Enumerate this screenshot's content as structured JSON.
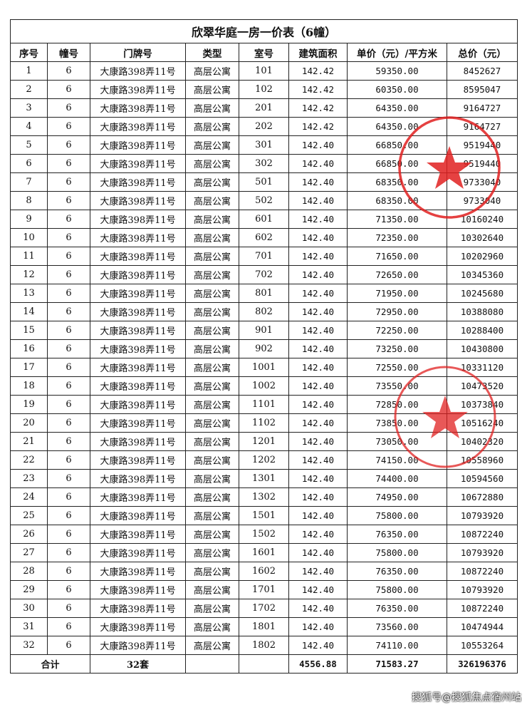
{
  "title": "欣翠华庭一房一价表（6幢）",
  "headers": [
    "序号",
    "幢号",
    "门牌号",
    "类型",
    "室号",
    "建筑面积",
    "单价（元）/平方米",
    "总价（元）"
  ],
  "rows": [
    [
      "1",
      "6",
      "大康路398弄11号",
      "高层公寓",
      "101",
      "142.42",
      "59350.00",
      "8452627"
    ],
    [
      "2",
      "6",
      "大康路398弄11号",
      "高层公寓",
      "102",
      "142.42",
      "60350.00",
      "8595047"
    ],
    [
      "3",
      "6",
      "大康路398弄11号",
      "高层公寓",
      "201",
      "142.42",
      "64350.00",
      "9164727"
    ],
    [
      "4",
      "6",
      "大康路398弄11号",
      "高层公寓",
      "202",
      "142.42",
      "64350.00",
      "9164727"
    ],
    [
      "5",
      "6",
      "大康路398弄11号",
      "高层公寓",
      "301",
      "142.40",
      "66850.00",
      "9519440"
    ],
    [
      "6",
      "6",
      "大康路398弄11号",
      "高层公寓",
      "302",
      "142.40",
      "66850.00",
      "9519440"
    ],
    [
      "7",
      "6",
      "大康路398弄11号",
      "高层公寓",
      "501",
      "142.40",
      "68350.00",
      "9733040"
    ],
    [
      "8",
      "6",
      "大康路398弄11号",
      "高层公寓",
      "502",
      "142.40",
      "68350.00",
      "9733040"
    ],
    [
      "9",
      "6",
      "大康路398弄11号",
      "高层公寓",
      "601",
      "142.40",
      "71350.00",
      "10160240"
    ],
    [
      "10",
      "6",
      "大康路398弄11号",
      "高层公寓",
      "602",
      "142.40",
      "72350.00",
      "10302640"
    ],
    [
      "11",
      "6",
      "大康路398弄11号",
      "高层公寓",
      "701",
      "142.40",
      "71650.00",
      "10202960"
    ],
    [
      "12",
      "6",
      "大康路398弄11号",
      "高层公寓",
      "702",
      "142.40",
      "72650.00",
      "10345360"
    ],
    [
      "13",
      "6",
      "大康路398弄11号",
      "高层公寓",
      "801",
      "142.40",
      "71950.00",
      "10245680"
    ],
    [
      "14",
      "6",
      "大康路398弄11号",
      "高层公寓",
      "802",
      "142.40",
      "72950.00",
      "10388080"
    ],
    [
      "15",
      "6",
      "大康路398弄11号",
      "高层公寓",
      "901",
      "142.40",
      "72250.00",
      "10288400"
    ],
    [
      "16",
      "6",
      "大康路398弄11号",
      "高层公寓",
      "902",
      "142.40",
      "73250.00",
      "10430800"
    ],
    [
      "17",
      "6",
      "大康路398弄11号",
      "高层公寓",
      "1001",
      "142.40",
      "72550.00",
      "10331120"
    ],
    [
      "18",
      "6",
      "大康路398弄11号",
      "高层公寓",
      "1002",
      "142.40",
      "73550.00",
      "10473520"
    ],
    [
      "19",
      "6",
      "大康路398弄11号",
      "高层公寓",
      "1101",
      "142.40",
      "72850.00",
      "10373840"
    ],
    [
      "20",
      "6",
      "大康路398弄11号",
      "高层公寓",
      "1102",
      "142.40",
      "73850.00",
      "10516240"
    ],
    [
      "21",
      "6",
      "大康路398弄11号",
      "高层公寓",
      "1201",
      "142.40",
      "73050.00",
      "10402320"
    ],
    [
      "22",
      "6",
      "大康路398弄11号",
      "高层公寓",
      "1202",
      "142.40",
      "74150.00",
      "10558960"
    ],
    [
      "23",
      "6",
      "大康路398弄11号",
      "高层公寓",
      "1301",
      "142.40",
      "74400.00",
      "10594560"
    ],
    [
      "24",
      "6",
      "大康路398弄11号",
      "高层公寓",
      "1302",
      "142.40",
      "74950.00",
      "10672880"
    ],
    [
      "25",
      "6",
      "大康路398弄11号",
      "高层公寓",
      "1501",
      "142.40",
      "75800.00",
      "10793920"
    ],
    [
      "26",
      "6",
      "大康路398弄11号",
      "高层公寓",
      "1502",
      "142.40",
      "76350.00",
      "10872240"
    ],
    [
      "27",
      "6",
      "大康路398弄11号",
      "高层公寓",
      "1601",
      "142.40",
      "75800.00",
      "10793920"
    ],
    [
      "28",
      "6",
      "大康路398弄11号",
      "高层公寓",
      "1602",
      "142.40",
      "76350.00",
      "10872240"
    ],
    [
      "29",
      "6",
      "大康路398弄11号",
      "高层公寓",
      "1701",
      "142.40",
      "75800.00",
      "10793920"
    ],
    [
      "30",
      "6",
      "大康路398弄11号",
      "高层公寓",
      "1702",
      "142.40",
      "76350.00",
      "10872240"
    ],
    [
      "31",
      "6",
      "大康路398弄11号",
      "高层公寓",
      "1801",
      "142.40",
      "73560.00",
      "10474944"
    ],
    [
      "32",
      "6",
      "大康路398弄11号",
      "高层公寓",
      "1802",
      "142.40",
      "74110.00",
      "10553264"
    ]
  ],
  "total": {
    "label": "合计",
    "units": "32套",
    "area": "4556.88",
    "avg_price": "71583.27",
    "total_price": "326196376"
  },
  "watermark": "搜狐号@搜狐焦点宿州站",
  "stamp_color": "#e02020"
}
